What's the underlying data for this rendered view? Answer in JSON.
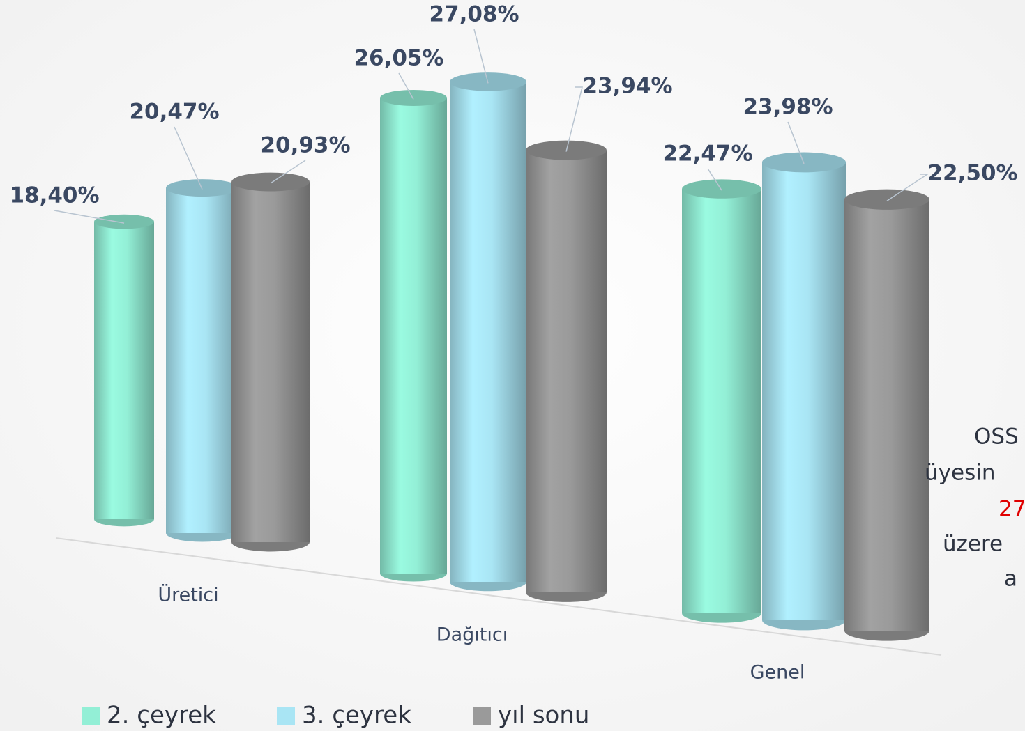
{
  "chart_data": {
    "type": "bar3d",
    "categories": [
      "Üretici",
      "Dağıtıcı",
      "Genel"
    ],
    "series": [
      {
        "name": "2. çeyrek",
        "color": "#93efd6",
        "values": [
          18.4,
          26.05,
          22.47
        ],
        "value_labels": [
          "18,40%",
          "26,05%",
          "22,47%"
        ]
      },
      {
        "name": "3. çeyrek",
        "color": "#a9e5f4",
        "values": [
          20.47,
          27.08,
          23.98
        ],
        "value_labels": [
          "20,47%",
          "27,08%",
          "23,98%"
        ]
      },
      {
        "name": "yıl sonu",
        "color": "#9a9a9a",
        "values": [
          20.93,
          23.94,
          22.5
        ],
        "value_labels": [
          "20,93%",
          "23,94%",
          "22,50%"
        ]
      }
    ],
    "annotation": [
      {
        "text": "OSS"
      },
      {
        "text": "üyesin"
      },
      {
        "text": "27",
        "color": "#e00000"
      },
      {
        "text": "üzere"
      },
      {
        "text": "a"
      }
    ]
  }
}
